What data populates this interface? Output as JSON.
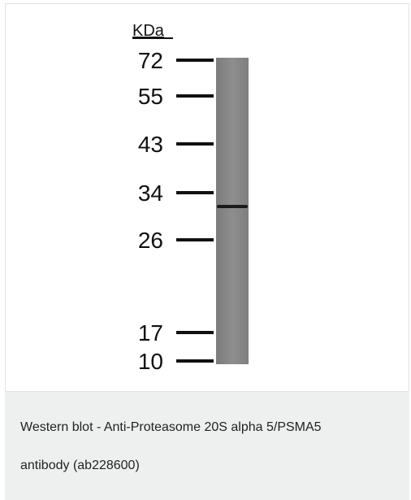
{
  "blot": {
    "unit_label": "KDa",
    "markers": [
      "72",
      "55",
      "43",
      "34",
      "26",
      "17",
      "10"
    ]
  },
  "caption": "Western blot - Anti-Proteasome 20S alpha 5/PSMA5 antibody (ab228600)"
}
